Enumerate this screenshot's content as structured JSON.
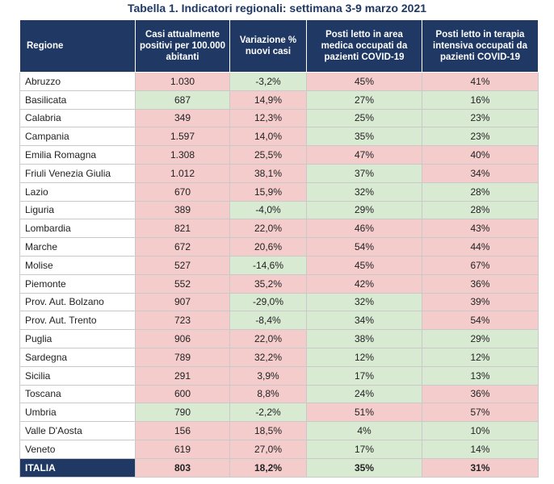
{
  "title": "Tabella 1. Indicatori regionali: settimana 3-9 marzo 2021",
  "colors": {
    "header": "#1f3864",
    "red": "#f4cccc",
    "green": "#d9ead3"
  },
  "headers": [
    "Regione",
    "Casi attualmente positivi per 100.000 abitanti",
    "Variazione % nuovi casi",
    "Posti letto in area medica occupati da pazienti COVID-19",
    "Posti letto in terapia intensiva occupati da pazienti COVID-19"
  ],
  "rows": [
    {
      "regione": "Abruzzo",
      "casi": "1.030",
      "casi_c": "red",
      "var": "-3,2%",
      "var_c": "green",
      "medica": "45%",
      "medica_c": "red",
      "ti": "41%",
      "ti_c": "red"
    },
    {
      "regione": "Basilicata",
      "casi": "687",
      "casi_c": "green",
      "var": "14,9%",
      "var_c": "red",
      "medica": "27%",
      "medica_c": "green",
      "ti": "16%",
      "ti_c": "green"
    },
    {
      "regione": "Calabria",
      "casi": "349",
      "casi_c": "red",
      "var": "12,3%",
      "var_c": "red",
      "medica": "25%",
      "medica_c": "green",
      "ti": "23%",
      "ti_c": "green"
    },
    {
      "regione": "Campania",
      "casi": "1.597",
      "casi_c": "red",
      "var": "14,0%",
      "var_c": "red",
      "medica": "35%",
      "medica_c": "green",
      "ti": "23%",
      "ti_c": "green"
    },
    {
      "regione": "Emilia Romagna",
      "casi": "1.308",
      "casi_c": "red",
      "var": "25,5%",
      "var_c": "red",
      "medica": "47%",
      "medica_c": "red",
      "ti": "40%",
      "ti_c": "red"
    },
    {
      "regione": "Friuli Venezia Giulia",
      "casi": "1.012",
      "casi_c": "red",
      "var": "38,1%",
      "var_c": "red",
      "medica": "37%",
      "medica_c": "green",
      "ti": "34%",
      "ti_c": "red"
    },
    {
      "regione": "Lazio",
      "casi": "670",
      "casi_c": "red",
      "var": "15,9%",
      "var_c": "red",
      "medica": "32%",
      "medica_c": "green",
      "ti": "28%",
      "ti_c": "green"
    },
    {
      "regione": "Liguria",
      "casi": "389",
      "casi_c": "red",
      "var": "-4,0%",
      "var_c": "green",
      "medica": "29%",
      "medica_c": "green",
      "ti": "28%",
      "ti_c": "green"
    },
    {
      "regione": "Lombardia",
      "casi": "821",
      "casi_c": "red",
      "var": "22,0%",
      "var_c": "red",
      "medica": "46%",
      "medica_c": "red",
      "ti": "43%",
      "ti_c": "red"
    },
    {
      "regione": "Marche",
      "casi": "672",
      "casi_c": "red",
      "var": "20,6%",
      "var_c": "red",
      "medica": "54%",
      "medica_c": "red",
      "ti": "44%",
      "ti_c": "red"
    },
    {
      "regione": "Molise",
      "casi": "527",
      "casi_c": "red",
      "var": "-14,6%",
      "var_c": "green",
      "medica": "45%",
      "medica_c": "red",
      "ti": "67%",
      "ti_c": "red"
    },
    {
      "regione": "Piemonte",
      "casi": "552",
      "casi_c": "red",
      "var": "35,2%",
      "var_c": "red",
      "medica": "42%",
      "medica_c": "red",
      "ti": "36%",
      "ti_c": "red"
    },
    {
      "regione": "Prov. Aut. Bolzano",
      "casi": "907",
      "casi_c": "red",
      "var": "-29,0%",
      "var_c": "green",
      "medica": "32%",
      "medica_c": "green",
      "ti": "39%",
      "ti_c": "red"
    },
    {
      "regione": "Prov. Aut. Trento",
      "casi": "723",
      "casi_c": "red",
      "var": "-8,4%",
      "var_c": "green",
      "medica": "34%",
      "medica_c": "green",
      "ti": "54%",
      "ti_c": "red"
    },
    {
      "regione": "Puglia",
      "casi": "906",
      "casi_c": "red",
      "var": "22,0%",
      "var_c": "red",
      "medica": "38%",
      "medica_c": "green",
      "ti": "29%",
      "ti_c": "green"
    },
    {
      "regione": "Sardegna",
      "casi": "789",
      "casi_c": "red",
      "var": "32,2%",
      "var_c": "red",
      "medica": "12%",
      "medica_c": "green",
      "ti": "12%",
      "ti_c": "green"
    },
    {
      "regione": "Sicilia",
      "casi": "291",
      "casi_c": "red",
      "var": "3,9%",
      "var_c": "red",
      "medica": "17%",
      "medica_c": "green",
      "ti": "13%",
      "ti_c": "green"
    },
    {
      "regione": "Toscana",
      "casi": "600",
      "casi_c": "red",
      "var": "8,8%",
      "var_c": "red",
      "medica": "24%",
      "medica_c": "green",
      "ti": "36%",
      "ti_c": "red"
    },
    {
      "regione": "Umbria",
      "casi": "790",
      "casi_c": "green",
      "var": "-2,2%",
      "var_c": "green",
      "medica": "51%",
      "medica_c": "red",
      "ti": "57%",
      "ti_c": "red"
    },
    {
      "regione": "Valle D'Aosta",
      "casi": "156",
      "casi_c": "red",
      "var": "18,5%",
      "var_c": "red",
      "medica": "4%",
      "medica_c": "green",
      "ti": "10%",
      "ti_c": "green"
    },
    {
      "regione": "Veneto",
      "casi": "619",
      "casi_c": "red",
      "var": "27,0%",
      "var_c": "red",
      "medica": "17%",
      "medica_c": "green",
      "ti": "14%",
      "ti_c": "green"
    }
  ],
  "total": {
    "regione": "ITALIA",
    "casi": "803",
    "casi_c": "red",
    "var": "18,2%",
    "var_c": "red",
    "medica": "35%",
    "medica_c": "green",
    "ti": "31%",
    "ti_c": "red"
  }
}
